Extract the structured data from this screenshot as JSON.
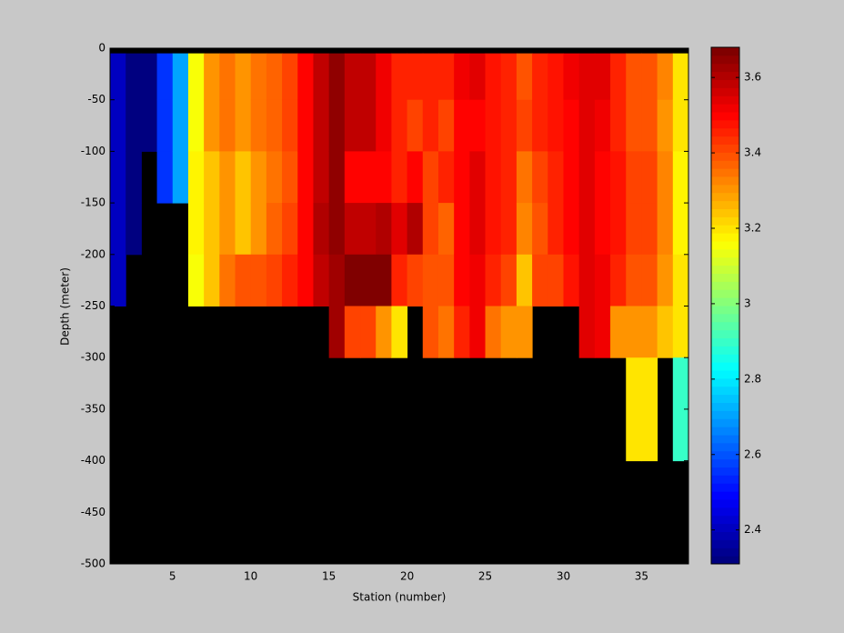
{
  "chart_data": {
    "type": "heatmap",
    "xlabel": "Station (number)",
    "ylabel": "Depth (meter)",
    "x_edges": [
      1,
      2,
      3,
      4,
      5,
      6,
      7,
      8,
      9,
      10,
      11,
      12,
      13,
      14,
      15,
      16,
      17,
      18,
      19,
      20,
      21,
      22,
      23,
      24,
      25,
      26,
      27,
      28,
      29,
      30,
      31,
      32,
      33,
      34,
      35,
      36,
      37,
      38
    ],
    "depth_edges": [
      -5,
      -50,
      -100,
      -150,
      -200,
      -250,
      -300,
      -400,
      -500
    ],
    "values": [
      [
        2.4,
        2.4,
        2.4,
        2.4,
        2.4,
        null,
        null,
        null
      ],
      [
        2.32,
        2.32,
        2.32,
        2.32,
        null,
        null,
        null,
        null
      ],
      [
        2.32,
        2.32,
        null,
        null,
        null,
        null,
        null,
        null
      ],
      [
        2.55,
        2.55,
        2.55,
        null,
        null,
        null,
        null,
        null
      ],
      [
        2.7,
        2.7,
        2.7,
        null,
        null,
        null,
        null,
        null
      ],
      [
        3.15,
        3.15,
        3.18,
        3.18,
        3.15,
        null,
        null,
        null
      ],
      [
        3.3,
        3.3,
        3.25,
        3.25,
        3.25,
        null,
        null,
        null
      ],
      [
        3.35,
        3.35,
        3.3,
        3.3,
        3.35,
        null,
        null,
        null
      ],
      [
        3.3,
        3.3,
        3.25,
        3.25,
        3.4,
        null,
        null,
        null
      ],
      [
        3.35,
        3.35,
        3.3,
        3.3,
        3.4,
        null,
        null,
        null
      ],
      [
        3.38,
        3.38,
        3.35,
        3.38,
        3.42,
        null,
        null,
        null
      ],
      [
        3.42,
        3.42,
        3.4,
        3.42,
        3.45,
        null,
        null,
        null
      ],
      [
        3.5,
        3.5,
        3.5,
        3.5,
        3.5,
        null,
        null,
        null
      ],
      [
        3.58,
        3.58,
        3.58,
        3.6,
        3.58,
        null,
        null,
        null
      ],
      [
        3.65,
        3.65,
        3.65,
        3.65,
        3.62,
        3.62,
        null,
        null
      ],
      [
        3.58,
        3.58,
        3.5,
        3.58,
        3.68,
        3.42,
        null,
        null
      ],
      [
        3.58,
        3.58,
        3.5,
        3.58,
        3.68,
        3.42,
        null,
        null
      ],
      [
        3.52,
        3.52,
        3.5,
        3.6,
        3.68,
        3.3,
        null,
        null
      ],
      [
        3.45,
        3.45,
        3.45,
        3.55,
        3.45,
        3.2,
        null,
        null
      ],
      [
        3.45,
        3.42,
        3.5,
        3.6,
        3.42,
        null,
        null,
        null
      ],
      [
        3.45,
        3.45,
        3.42,
        3.42,
        3.4,
        3.4,
        null,
        null
      ],
      [
        3.45,
        3.42,
        3.45,
        3.38,
        3.4,
        3.35,
        null,
        null
      ],
      [
        3.52,
        3.5,
        3.5,
        3.5,
        3.5,
        3.45,
        null,
        null
      ],
      [
        3.55,
        3.5,
        3.55,
        3.55,
        3.52,
        3.52,
        null,
        null
      ],
      [
        3.48,
        3.48,
        3.48,
        3.48,
        3.45,
        3.35,
        null,
        null
      ],
      [
        3.45,
        3.45,
        3.45,
        3.45,
        3.42,
        3.3,
        null,
        null
      ],
      [
        3.4,
        3.42,
        3.35,
        3.32,
        3.25,
        3.3,
        null,
        null
      ],
      [
        3.45,
        3.45,
        3.42,
        3.4,
        3.42,
        null,
        null,
        null
      ],
      [
        3.48,
        3.48,
        3.45,
        3.45,
        3.42,
        null,
        null,
        null
      ],
      [
        3.52,
        3.5,
        3.5,
        3.5,
        3.48,
        null,
        null,
        null
      ],
      [
        3.55,
        3.55,
        3.55,
        3.55,
        3.55,
        3.55,
        null,
        null
      ],
      [
        3.55,
        3.52,
        3.5,
        3.5,
        3.52,
        3.52,
        null,
        null
      ],
      [
        3.45,
        3.45,
        3.48,
        3.48,
        3.45,
        3.3,
        null,
        null
      ],
      [
        3.4,
        3.4,
        3.42,
        3.42,
        3.4,
        3.3,
        3.2,
        null
      ],
      [
        3.4,
        3.4,
        3.42,
        3.42,
        3.4,
        3.3,
        3.2,
        null
      ],
      [
        3.32,
        3.3,
        3.32,
        3.32,
        3.3,
        3.25,
        null,
        null
      ],
      [
        3.2,
        3.2,
        3.18,
        3.18,
        3.2,
        3.2,
        2.9,
        null
      ]
    ],
    "xlim": [
      1,
      38
    ],
    "xticks": [
      5,
      10,
      15,
      20,
      25,
      30,
      35
    ],
    "ylim": [
      -500,
      0
    ],
    "yticks": [
      0,
      -50,
      -100,
      -150,
      -200,
      -250,
      -300,
      -350,
      -400,
      -450,
      -500
    ],
    "clim": [
      2.31,
      3.68
    ],
    "cticks": [
      2.4,
      2.6,
      2.8,
      3,
      3.2,
      3.4,
      3.6
    ],
    "colormap": "jet",
    "background": "#000000"
  }
}
